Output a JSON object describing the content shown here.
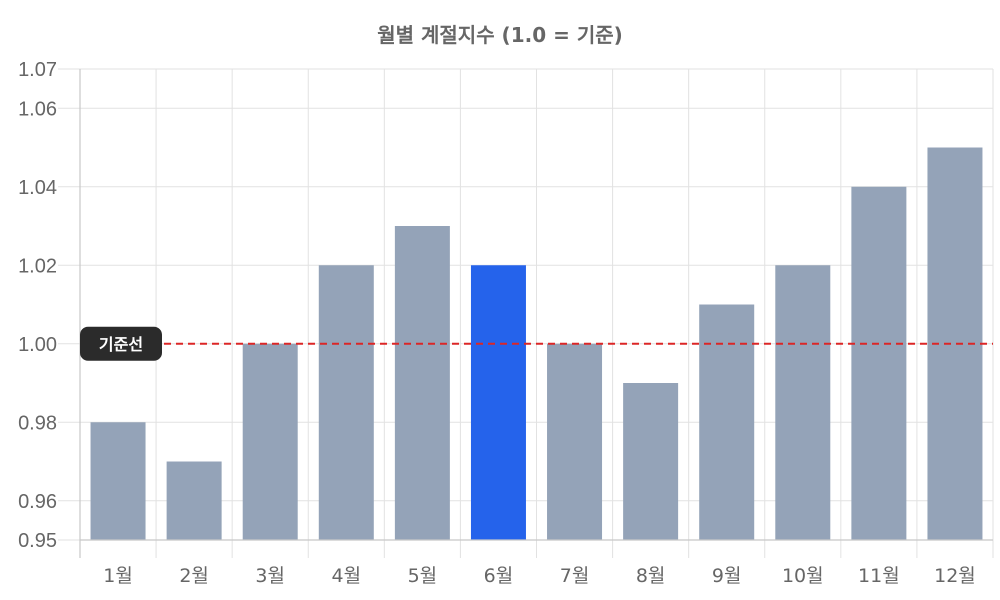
{
  "chart_data": {
    "type": "bar",
    "title": "월별 계절지수 (1.0 = 기준)",
    "xlabel": "",
    "ylabel": "",
    "categories": [
      "1월",
      "2월",
      "3월",
      "4월",
      "5월",
      "6월",
      "7월",
      "8월",
      "9월",
      "10월",
      "11월",
      "12월"
    ],
    "values": [
      0.98,
      0.97,
      1.0,
      1.02,
      1.03,
      1.02,
      1.0,
      0.99,
      1.01,
      1.02,
      1.04,
      1.05
    ],
    "highlight_index": 5,
    "ylim": [
      0.95,
      1.07
    ],
    "yticks": [
      "0.95",
      "0.96",
      "0.98",
      "1.00",
      "1.02",
      "1.04",
      "1.06",
      "1.07"
    ],
    "grid": true,
    "reference_line": {
      "value": 1.0,
      "label": "기준선",
      "color": "#dc2626",
      "style": "dashed"
    },
    "colors": {
      "bar": "#94a3b8",
      "highlight": "#2563eb",
      "grid": "#e2e2e2",
      "axis": "#c8c8c8",
      "text": "#666666",
      "label_bg": "#2b2b2b"
    }
  }
}
